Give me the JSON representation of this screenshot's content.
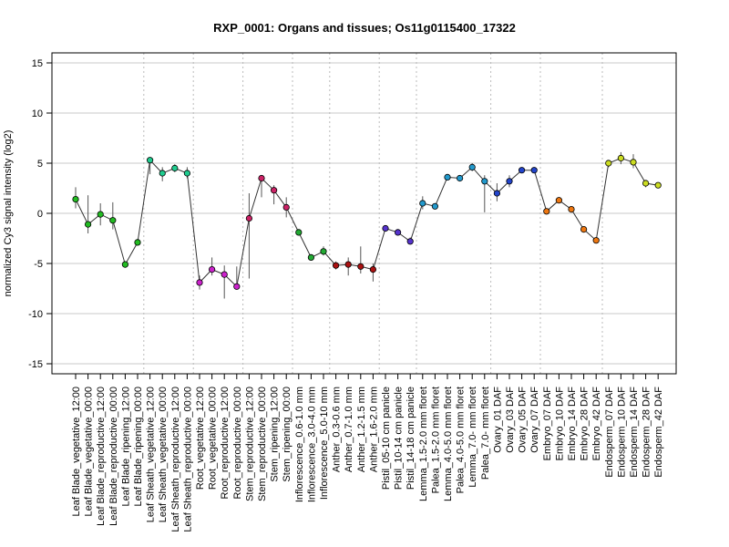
{
  "chart_data": {
    "type": "line",
    "title": "RXP_0001: Organs and tissues; Os11g0115400_17322",
    "xlabel": "",
    "ylabel": "normalized Cy3 signal intensity (log2)",
    "ylim": [
      -16,
      16
    ],
    "yticks": [
      -15,
      -10,
      -5,
      0,
      5,
      10,
      15
    ],
    "grid": "horizontal at y ticks; dotted vertical separators between tissue groups",
    "categories": [
      "Leaf Blade_vegetative_12:00",
      "Leaf Blade_vegetative_00:00",
      "Leaf Blade_reproductive_12:00",
      "Leaf Blade_reproductive_00:00",
      "Leaf Blade_ripening_12:00",
      "Leaf Blade_ripening_00:00",
      "Leaf Sheath_vegetative_12:00",
      "Leaf Sheath_vegetative_00:00",
      "Leaf Sheath_reproductive_12:00",
      "Leaf Sheath_reproductive_00:00",
      "Root_vegetative_12:00",
      "Root_vegetative_00:00",
      "Root_reproductive_12:00",
      "Root_reproductive_00:00",
      "Stem_reproductive_12:00",
      "Stem_reproductive_00:00",
      "Stem_ripening_12:00",
      "Stem_ripening_00:00",
      "Inflorescence_0.6-1.0 mm",
      "Inflorescence_3.0-4.0 mm",
      "Inflorescence_5.0-10 mm",
      "Anther_0.3-0.6 mm",
      "Anther_0.7-1.0 mm",
      "Anther_1.2-1.5 mm",
      "Anther_1.6-2.0 mm",
      "Pistil_05-10 cm panicle",
      "Pistil_10-14 cm panicle",
      "Pistil_14-18 cm panicle",
      "Lemma_1.5-2.0 mm floret",
      "Palea_1.5-2.0 mm floret",
      "Lemma_4.0-5.0 mm floret",
      "Palea_4.0-5.0 mm floret",
      "Lemma_7.0- mm floret",
      "Palea_7.0- mm floret",
      "Ovary_01 DAF",
      "Ovary_03 DAF",
      "Ovary_05 DAF",
      "Ovary_07 DAF",
      "Embryo_07 DAF",
      "Embryo_10 DAF",
      "Embryo_14 DAF",
      "Embryo_28 DAF",
      "Embryo_42 DAF",
      "Endosperm_07 DAF",
      "Endosperm_10 DAF",
      "Endosperm_14 DAF",
      "Endosperm_28 DAF",
      "Endosperm_42 DAF"
    ],
    "values": [
      1.4,
      -1.1,
      -0.1,
      -0.7,
      -5.1,
      -2.9,
      5.3,
      4.0,
      4.5,
      4.0,
      -6.9,
      -5.6,
      -6.1,
      -7.3,
      -0.5,
      3.5,
      2.3,
      0.6,
      -1.9,
      -4.4,
      -3.8,
      -5.2,
      -5.1,
      -5.3,
      -5.6,
      -1.5,
      -1.9,
      -2.8,
      1.0,
      0.7,
      3.6,
      3.5,
      4.6,
      3.2,
      2.0,
      3.2,
      4.3,
      4.3,
      0.2,
      1.3,
      0.4,
      -1.6,
      -2.7,
      5.0,
      5.5,
      5.1,
      3.0,
      2.8
    ],
    "error_low": [
      0.5,
      -2.0,
      -1.2,
      -1.6,
      -5.4,
      -3.2,
      3.9,
      3.2,
      4.1,
      3.5,
      -7.6,
      -6.2,
      -8.5,
      -7.6,
      -6.5,
      1.6,
      0.9,
      -0.4,
      -2.2,
      -4.6,
      -4.2,
      -5.6,
      -6.2,
      -6.0,
      -6.8,
      -1.8,
      -2.1,
      -3.1,
      0.4,
      0.4,
      3.3,
      3.2,
      4.2,
      0.1,
      1.2,
      2.6,
      4.1,
      4.0,
      -0.1,
      1.0,
      0.1,
      -1.9,
      -2.9,
      4.6,
      4.9,
      4.5,
      2.6,
      2.6
    ],
    "error_high": [
      2.6,
      1.8,
      1.0,
      1.1,
      -4.8,
      -2.6,
      5.4,
      4.6,
      4.9,
      4.6,
      -6.2,
      -4.4,
      -5.2,
      -5.3,
      2.0,
      3.8,
      2.8,
      1.6,
      -1.6,
      -4.2,
      -3.3,
      -4.8,
      -4.4,
      -3.3,
      -5.0,
      -1.2,
      -1.6,
      -2.4,
      1.7,
      1.0,
      3.8,
      3.8,
      5.0,
      3.8,
      3.0,
      3.8,
      4.5,
      4.6,
      0.5,
      1.6,
      0.7,
      -1.3,
      -2.5,
      5.3,
      6.1,
      5.9,
      3.3,
      3.0
    ],
    "group_separators_after_index": [
      5,
      9,
      13,
      17,
      20,
      24,
      27,
      33,
      37,
      42
    ],
    "point_colors": [
      "#22bb22",
      "#22bb22",
      "#22bb22",
      "#22bb22",
      "#22bb22",
      "#22bb22",
      "#1fcc8f",
      "#1fcc8f",
      "#1fcc8f",
      "#1fcc8f",
      "#cc22cc",
      "#cc22cc",
      "#cc22cc",
      "#cc22cc",
      "#cc2266",
      "#cc2266",
      "#cc2266",
      "#cc2266",
      "#22aa33",
      "#22aa33",
      "#22aa33",
      "#aa1111",
      "#aa1111",
      "#aa1111",
      "#aa1111",
      "#5533cc",
      "#5533cc",
      "#5533cc",
      "#2299cc",
      "#2299cc",
      "#2299cc",
      "#2299cc",
      "#2299cc",
      "#2299cc",
      "#2244cc",
      "#2244cc",
      "#2244cc",
      "#2244cc",
      "#ee7711",
      "#ee7711",
      "#ee7711",
      "#ee7711",
      "#ee7711",
      "#ccdd22",
      "#ccdd22",
      "#ccdd22",
      "#ccdd22",
      "#ccdd22"
    ]
  }
}
